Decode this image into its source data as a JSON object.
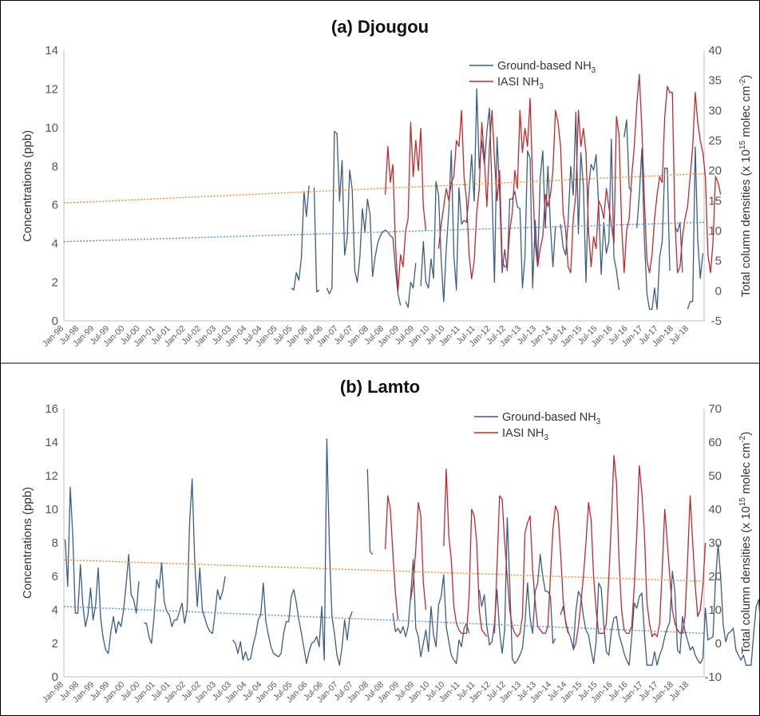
{
  "colors": {
    "ground": "#3a5c86",
    "iasi": "#c0282d",
    "ground_trend": "#5b8fd6",
    "iasi_trend": "#f08a3c",
    "axis": "#bfbfbf",
    "border": "#000000"
  },
  "x_tick_labels": [
    "Jan-98",
    "Jul-98",
    "Jan-99",
    "Jul-99",
    "Jan-00",
    "Jul-00",
    "Jan-01",
    "Jul-01",
    "Jan-02",
    "Jul-02",
    "Jan-03",
    "Jul-03",
    "Jan-04",
    "Jul-04",
    "Jan-05",
    "Jul-05",
    "Jan-06",
    "Jul-06",
    "Jan-07",
    "Jul-07",
    "Jan-08",
    "Jul-08",
    "Jan-09",
    "Jul-09",
    "Jan-10",
    "Jul-10",
    "Jan-11",
    "Jul-11",
    "Jan-12",
    "Jul-12",
    "Jan-13",
    "Jul-13",
    "Jan-14",
    "Jul-14",
    "Jan-15",
    "Jul-15",
    "Jan-16",
    "Jul-16",
    "Jan-17",
    "Jul-17",
    "Jan-18",
    "Jul-18"
  ],
  "chart_data": [
    {
      "type": "line",
      "title": "(a) Djougou",
      "ylabel": "Concentrations (ppb)",
      "y2label_main": "Total column densities (x 10",
      "y2label_sup": "15",
      "y2label_mid": " molec cm",
      "y2label_sup2": "-2",
      "y2label_end": ")",
      "ylim": [
        0,
        14
      ],
      "y2lim": [
        -5,
        40
      ],
      "yticks": [
        0,
        2,
        4,
        6,
        8,
        10,
        12,
        14
      ],
      "y2ticks": [
        -5,
        0,
        5,
        10,
        15,
        20,
        25,
        30,
        35,
        40
      ],
      "x_range": [
        "Jan-98",
        "Dec-18"
      ],
      "legend_position": "top-right",
      "series": [
        {
          "name": "Ground-based NH",
          "name_sub": "3",
          "axis": "left",
          "start": "Jun-05",
          "values": [
            1.7,
            1.6,
            2.5,
            2.1,
            3.3,
            6.7,
            5.4,
            7.0,
            null,
            6.9,
            1.5,
            1.6,
            null,
            null,
            1.7,
            1.4,
            1.7,
            9.8,
            9.7,
            6.2,
            8.3,
            3.4,
            4.3,
            7.8,
            6.8,
            2.6,
            2.0,
            3.3,
            5.8,
            4.6,
            6.3,
            5.5,
            2.3,
            3.3,
            4.0,
            4.4,
            4.6,
            4.7,
            4.6,
            4.4,
            4.3,
            2.7,
            1.4,
            0.8,
            null,
            1.0,
            0.7,
            2.0,
            1.7,
            3.0,
            null,
            1.8,
            4.1,
            2.0,
            1.7,
            3.2,
            2.2,
            7.2,
            6.5,
            3.2,
            1.0,
            3.7,
            5.7,
            8.8,
            3.4,
            1.6,
            6.9,
            5.0,
            5.2,
            5.1,
            6.5,
            8.6,
            6.2,
            12.0,
            7.9,
            9.3,
            8.1,
            9.8,
            11.0,
            6.7,
            2.0,
            9.5,
            6.7,
            2.5,
            3.7,
            2.6,
            6.3,
            6.3,
            6.7,
            5.9,
            5.8,
            1.7,
            3.3,
            8.8,
            8.4,
            1.7,
            5.2,
            2.9,
            7.4,
            8.8,
            4.8,
            8.0,
            4.9,
            2.8,
            4.9,
            null,
            5.0,
            3.8,
            3.4,
            5.2,
            8.0,
            6.5,
            10.8,
            4.5,
            8.7,
            7.0,
            2.0,
            6.9,
            8.1,
            7.8,
            8.6,
            6.0,
            2.4,
            5.1,
            3.5,
            4.1,
            9.4,
            3.3,
            2.6,
            1.6,
            null,
            9.5,
            10.4,
            6.9,
            6.7,
            null,
            4.8,
            6.5,
            8.9,
            4.2,
            1.4,
            0.6,
            0.6,
            1.7,
            0.6,
            3.3,
            4.1,
            7.9,
            7.9,
            2.6,
            null,
            4.9,
            4.6,
            5.1,
            2.5,
            null,
            0.6,
            1.0,
            1.0,
            9.0,
            4.2,
            2.2,
            3.5
          ]
        },
        {
          "name": "IASI NH",
          "name_sub": "3",
          "axis": "right",
          "start": "Jul-08",
          "values": [
            16,
            24,
            18,
            21,
            8,
            0,
            6,
            4,
            10,
            12,
            28,
            19,
            25,
            20,
            27,
            14,
            10,
            null,
            null,
            null,
            null,
            7,
            11,
            14,
            17,
            15,
            18,
            19,
            25,
            24,
            30,
            19,
            15,
            6,
            2,
            5,
            13,
            17,
            28,
            22,
            14,
            24,
            30,
            22,
            15,
            20,
            5,
            4,
            4,
            10,
            13,
            20,
            17,
            30,
            23,
            27,
            24,
            32,
            18,
            8,
            4,
            7,
            9,
            16,
            14,
            16,
            20,
            30,
            28,
            24,
            13,
            10,
            4,
            3,
            12,
            16,
            30,
            24,
            27,
            23,
            10,
            4,
            9,
            7,
            15,
            14,
            12,
            17,
            14,
            11,
            8,
            29,
            26,
            11,
            3,
            10,
            12,
            19,
            24,
            31,
            36,
            27,
            15,
            5,
            3,
            6,
            12,
            16,
            19,
            18,
            29,
            34,
            33,
            33,
            12,
            3,
            4,
            9,
            12,
            14,
            19,
            24,
            33,
            28,
            25,
            23,
            19,
            6,
            3,
            8,
            19,
            18,
            16
          ]
        },
        {
          "name": "",
          "role": "trend",
          "axis": "left",
          "x": [
            "Jan-98",
            "Dec-18"
          ],
          "values": [
            4.1,
            5.1
          ]
        },
        {
          "name": "",
          "role": "trend",
          "axis": "right",
          "x": [
            "Jan-98",
            "Dec-18"
          ],
          "values": [
            14.6,
            19.5
          ]
        }
      ]
    },
    {
      "type": "line",
      "title": "(b) Lamto",
      "ylabel": "Concentrations (ppb)",
      "y2label_main": "Total column densities (x 10",
      "y2label_sup": "15",
      "y2label_mid": " molec cm",
      "y2label_sup2": "-2",
      "y2label_end": ")",
      "ylim": [
        0,
        16
      ],
      "y2lim": [
        -10,
        70
      ],
      "yticks": [
        0,
        2,
        4,
        6,
        8,
        10,
        12,
        14,
        16
      ],
      "y2ticks": [
        -10,
        0,
        10,
        20,
        30,
        40,
        50,
        60,
        70
      ],
      "x_range": [
        "Jan-98",
        "Dec-18"
      ],
      "legend_position": "top-right",
      "series": [
        {
          "name": "Ground-based NH",
          "name_sub": "3",
          "axis": "left",
          "start": "Jan-98",
          "values": [
            8.2,
            5.4,
            11.3,
            8.5,
            3.8,
            3.8,
            6.7,
            4.2,
            3.0,
            3.7,
            5.3,
            3.4,
            4.3,
            6.5,
            3.5,
            2.3,
            1.6,
            1.4,
            2.7,
            3.6,
            2.6,
            3.3,
            3.0,
            4.0,
            5.5,
            7.3,
            4.9,
            4.6,
            3.8,
            5.7,
            null,
            3.2,
            3.2,
            2.4,
            2.0,
            3.6,
            5.8,
            5.3,
            6.8,
            4.5,
            3.9,
            3.7,
            3.0,
            3.4,
            3.4,
            3.9,
            4.4,
            3.2,
            4.0,
            9.2,
            11.8,
            6.9,
            4.2,
            6.5,
            4.0,
            3.5,
            3.0,
            2.7,
            2.6,
            3.8,
            5.2,
            4.6,
            5.1,
            6.0,
            null,
            null,
            2.2,
            2.0,
            1.4,
            2.1,
            1.0,
            1.5,
            1.0,
            1.1,
            1.9,
            2.5,
            3.4,
            3.7,
            5.6,
            3.3,
            2.5,
            1.8,
            1.4,
            1.3,
            1.2,
            1.4,
            2.6,
            3.3,
            3.3,
            4.8,
            5.2,
            4.4,
            3.4,
            2.6,
            1.7,
            0.8,
            1.5,
            2.0,
            2.1,
            2.4,
            1.8,
            4.2,
            1.0,
            14.2,
            7.8,
            3.6,
            2.6,
            1.3,
            0.7,
            1.8,
            3.4,
            2.2,
            3.5,
            3.9,
            null,
            2.9,
            null,
            3.7,
            null,
            12.4,
            7.5,
            7.3,
            null,
            null,
            null,
            null,
            null,
            null,
            null,
            3.8,
            2.7,
            2.9,
            2.6,
            3.0,
            2.4,
            3.0,
            4.8,
            7.0,
            2.9,
            2.4,
            1.2,
            2.0,
            2.8,
            1.5,
            4.2,
            2.5,
            1.8,
            4.3,
            4.8,
            6.1,
            3.0,
            2.1,
            1.3,
            1.0,
            0.8,
            2.2,
            1.8,
            2.9,
            3.2,
            2.6,
            null,
            null,
            null,
            5.2,
            4.2,
            4.9,
            3.0,
            1.9,
            2.1,
            3.2,
            5.2,
            2.7,
            1.4,
            2.8,
            9.5,
            5.6,
            1.1,
            0.8,
            1.0,
            1.3,
            1.7,
            3.2,
            5.6,
            3.5,
            2.6,
            5.1,
            5.6,
            7.3,
            6.0,
            5.1,
            5.1,
            4.8,
            2.0,
            2.3,
            null,
            3.7,
            4.2,
            3.3,
            2.7,
            2.3,
            1.7,
            3.9,
            5.1,
            4.8,
            3.6,
            2.8,
            2.5,
            1.6,
            0.8,
            2.1,
            5.6,
            5.3,
            3.1,
            1.5,
            1.3,
            2.7,
            3.5,
            3.6,
            2.5,
            2.0,
            1.4,
            1.0,
            0.7,
            2.4,
            4.4,
            4.1,
            4.8,
            5.0,
            2.6,
            0.7,
            0.7,
            0.7,
            1.5,
            0.7,
            1.3,
            1.7,
            2.4,
            2.9,
            3.3,
            6.3,
            5.1,
            1.6,
            1.4,
            3.6,
            2.7,
            2.2,
            1.6,
            1.8,
            1.3,
            1.0,
            0.8,
            1.1,
            4.1,
            2.2,
            2.3,
            2.4,
            5.8,
            7.9,
            6.0,
            3.1,
            2.1,
            2.6,
            2.7,
            2.9,
            1.6,
            1.3,
            1.0,
            1.3,
            0.7,
            0.7,
            0.7,
            2.6,
            4.2,
            4.6,
            2.3,
            2.3,
            6.2,
            2.2,
            2.8,
            3.4,
            5.0,
            3.1,
            1.8,
            2.2,
            2.6,
            4.2,
            5.4,
            3.7,
            2.8,
            2.3,
            2.7,
            2.3,
            2.3,
            1.7,
            3.6,
            3.3,
            2.2,
            1.6,
            1.3,
            1.8
          ]
        },
        {
          "name": "IASI NH",
          "name_sub": "3",
          "axis": "right",
          "start": "Jul-08",
          "values": [
            28,
            44,
            40,
            27,
            15,
            7,
            null,
            null,
            null,
            null,
            13,
            18,
            28,
            42,
            38,
            18,
            10,
            null,
            null,
            null,
            null,
            null,
            null,
            29,
            52,
            32,
            25,
            11,
            6,
            4,
            3,
            3,
            3,
            14,
            40,
            38,
            30,
            10,
            4,
            3,
            2,
            null,
            null,
            3,
            23,
            44,
            43,
            30,
            20,
            10,
            5,
            3,
            2,
            3,
            8,
            33,
            36,
            38,
            22,
            12,
            5,
            4,
            3,
            3,
            5,
            20,
            34,
            41,
            39,
            27,
            13,
            6,
            3,
            null,
            -2,
            0,
            5,
            12,
            20,
            30,
            42,
            37,
            20,
            10,
            3,
            3,
            3,
            6,
            20,
            36,
            56,
            48,
            25,
            10,
            4,
            3,
            3,
            5,
            17,
            33,
            53,
            45,
            33,
            12,
            6,
            2,
            3,
            2,
            6,
            22,
            40,
            30,
            20,
            10,
            6,
            4,
            3,
            3,
            8,
            25,
            44,
            30,
            17,
            8,
            10,
            17,
            30
          ]
        },
        {
          "name": "",
          "role": "trend",
          "axis": "left",
          "x": [
            "Jan-98",
            "Dec-18"
          ],
          "values": [
            4.2,
            2.6
          ]
        },
        {
          "name": "",
          "role": "trend",
          "axis": "right",
          "x": [
            "Jan-98",
            "Dec-18"
          ],
          "values": [
            24.9,
            18.5
          ]
        }
      ]
    }
  ]
}
